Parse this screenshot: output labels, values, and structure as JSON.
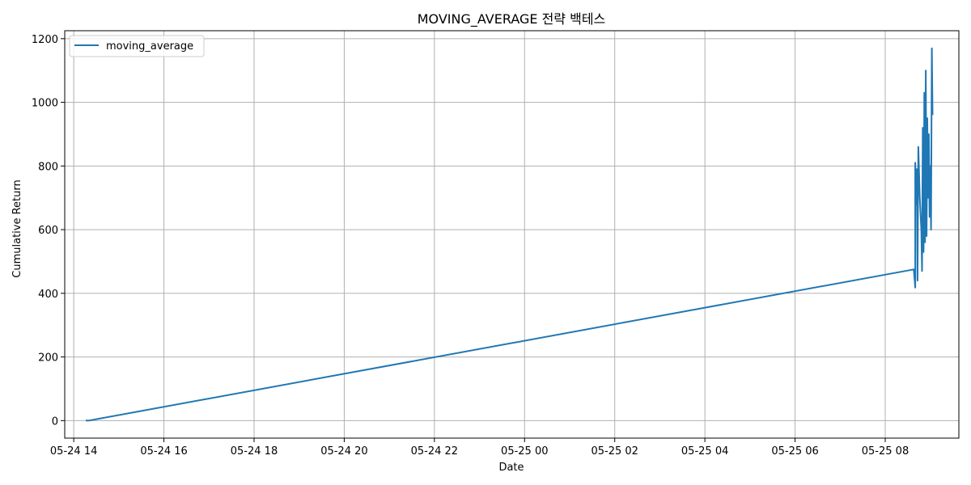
{
  "chart_data": {
    "type": "line",
    "title": "MOVING_AVERAGE 전략 백테스",
    "xlabel": "Date",
    "ylabel": "Cumulative Return",
    "grid": true,
    "legend_position": "top-left",
    "colors": {
      "series": "#1f77b4",
      "grid": "#b0b0b0",
      "axis": "#000000"
    },
    "x_axis": {
      "type": "datetime",
      "range": [
        "2024-05-24 13:48",
        "2024-05-25 09:38"
      ],
      "ticks": [
        {
          "value": "2024-05-24 14:00",
          "label": "05-24 14"
        },
        {
          "value": "2024-05-24 16:00",
          "label": "05-24 16"
        },
        {
          "value": "2024-05-24 18:00",
          "label": "05-24 18"
        },
        {
          "value": "2024-05-24 20:00",
          "label": "05-24 20"
        },
        {
          "value": "2024-05-24 22:00",
          "label": "05-24 22"
        },
        {
          "value": "2024-05-25 00:00",
          "label": "05-25 00"
        },
        {
          "value": "2024-05-25 02:00",
          "label": "05-25 02"
        },
        {
          "value": "2024-05-25 04:00",
          "label": "05-25 04"
        },
        {
          "value": "2024-05-25 06:00",
          "label": "05-25 06"
        },
        {
          "value": "2024-05-25 08:00",
          "label": "05-25 08"
        }
      ]
    },
    "y_axis": {
      "range": [
        -55,
        1225
      ],
      "ticks": [
        {
          "value": 0,
          "label": "0"
        },
        {
          "value": 200,
          "label": "200"
        },
        {
          "value": 400,
          "label": "400"
        },
        {
          "value": 600,
          "label": "600"
        },
        {
          "value": 800,
          "label": "800"
        },
        {
          "value": 1000,
          "label": "1000"
        },
        {
          "value": 1200,
          "label": "1200"
        }
      ]
    },
    "series": [
      {
        "name": "moving_average",
        "points": [
          [
            "2024-05-24 14:16",
            0
          ],
          [
            "2024-05-24 14:20",
            0
          ],
          [
            "2024-05-25 08:38",
            475
          ],
          [
            "2024-05-25 08:40",
            418
          ],
          [
            "2024-05-25 08:40",
            810
          ],
          [
            "2024-05-25 08:41",
            680
          ],
          [
            "2024-05-25 08:42",
            790
          ],
          [
            "2024-05-25 08:43",
            440
          ],
          [
            "2024-05-25 08:44",
            860
          ],
          [
            "2024-05-25 08:46",
            700
          ],
          [
            "2024-05-25 08:48",
            600
          ],
          [
            "2024-05-25 08:49",
            470
          ],
          [
            "2024-05-25 08:50",
            920
          ],
          [
            "2024-05-25 08:51",
            530
          ],
          [
            "2024-05-25 08:52",
            1030
          ],
          [
            "2024-05-25 08:53",
            560
          ],
          [
            "2024-05-25 08:54",
            1100
          ],
          [
            "2024-05-25 08:55",
            580
          ],
          [
            "2024-05-25 08:56",
            950
          ],
          [
            "2024-05-25 08:57",
            700
          ],
          [
            "2024-05-25 08:58",
            900
          ],
          [
            "2024-05-25 08:59",
            640
          ],
          [
            "2024-05-25 09:00",
            800
          ],
          [
            "2024-05-25 09:01",
            600
          ],
          [
            "2024-05-25 09:02",
            1170
          ],
          [
            "2024-05-25 09:03",
            960
          ]
        ]
      }
    ]
  }
}
